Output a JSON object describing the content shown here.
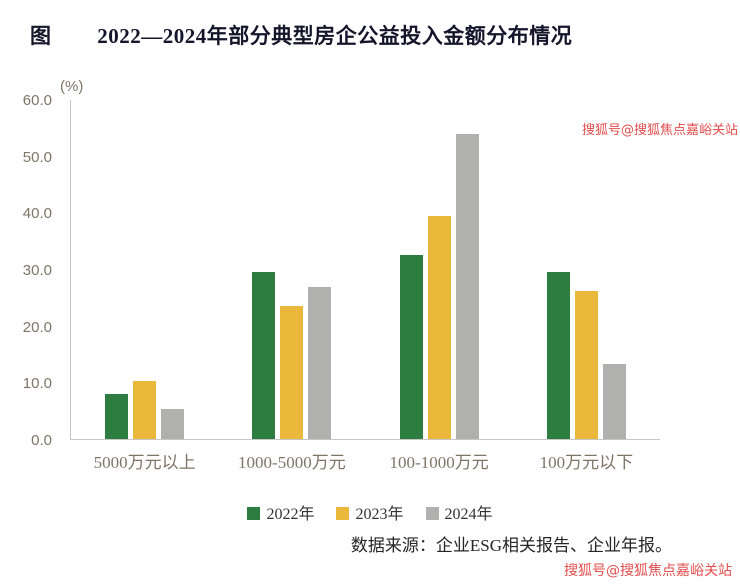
{
  "header": {
    "figure_label": "图"
  },
  "chart_data": {
    "type": "bar",
    "title": "2022—2024年部分典型房企公益投入金额分布情况",
    "xlabel": "",
    "ylabel": "(%)",
    "categories": [
      "5000万元以上",
      "1000-5000万元",
      "100-1000万元",
      "100万元以下"
    ],
    "series": [
      {
        "name": "2022年",
        "color": "#2e7d40",
        "values": [
          7.9,
          29.5,
          32.4,
          29.5
        ]
      },
      {
        "name": "2023年",
        "color": "#eab83a",
        "values": [
          10.3,
          23.5,
          39.4,
          26.2
        ]
      },
      {
        "name": "2024年",
        "color": "#b0b0af",
        "values": [
          5.3,
          26.8,
          53.9,
          13.3
        ]
      }
    ],
    "ylim": [
      0,
      60
    ],
    "y_tick_labels": [
      "0.0",
      "10.0",
      "20.0",
      "30.0",
      "40.0",
      "50.0",
      "60.0"
    ],
    "grid": false,
    "legend_position": "bottom"
  },
  "footer": {
    "source": "数据来源：企业ESG相关报告、企业年报。"
  },
  "watermarks": {
    "top": "搜狐号@搜狐焦点嘉峪关站",
    "bottom": "搜狐号@搜狐焦点嘉峪关站",
    "color": "#e03a3a"
  }
}
